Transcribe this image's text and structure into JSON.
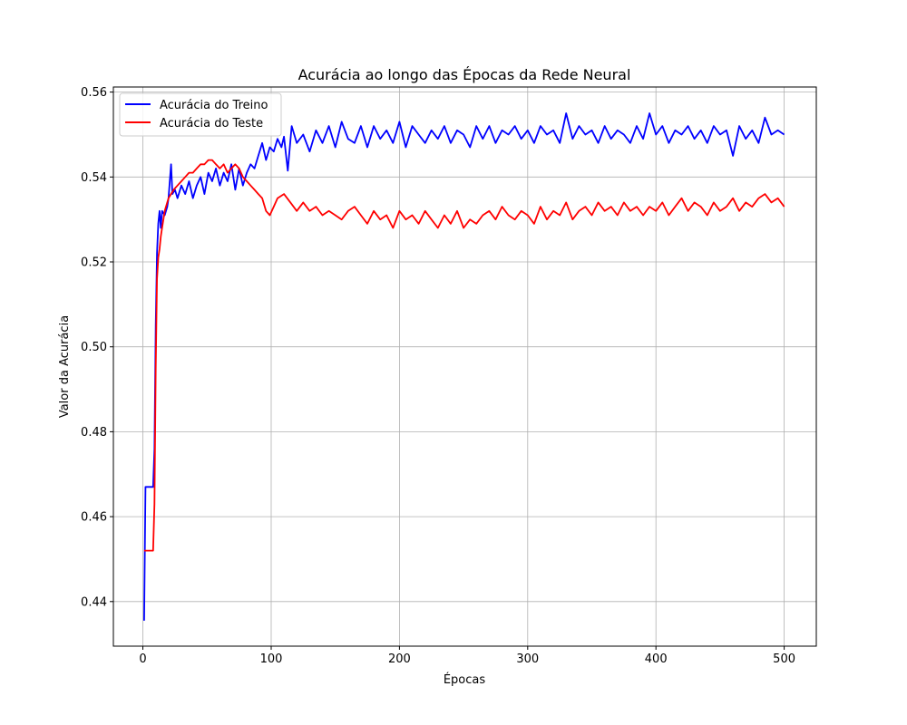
{
  "chart_data": {
    "type": "line",
    "title": "Acurácia ao longo das Épocas da Rede Neural",
    "xlabel": "Épocas",
    "ylabel": "Valor da Acurácia",
    "xlim": [
      -23,
      525
    ],
    "ylim": [
      0.4295,
      0.5612
    ],
    "xticks": [
      0,
      100,
      200,
      300,
      400,
      500
    ],
    "yticks": [
      0.44,
      0.46,
      0.48,
      0.5,
      0.52,
      0.54,
      0.56
    ],
    "ytick_labels": [
      "0.44",
      "0.46",
      "0.48",
      "0.50",
      "0.52",
      "0.54",
      "0.56"
    ],
    "grid": true,
    "legend_position": "upper-left",
    "series": [
      {
        "name": "Acurácia do Treino",
        "color": "#0000ff",
        "x": [
          1,
          2,
          3,
          8,
          9,
          10,
          11,
          12,
          13,
          14,
          15,
          17,
          19,
          20,
          22,
          23,
          25,
          27,
          30,
          33,
          36,
          39,
          42,
          45,
          48,
          51,
          54,
          57,
          60,
          63,
          66,
          69,
          72,
          75,
          78,
          81,
          84,
          87,
          90,
          93,
          96,
          99,
          102,
          105,
          108,
          110,
          113,
          116,
          120,
          125,
          130,
          135,
          140,
          145,
          150,
          155,
          160,
          165,
          170,
          175,
          180,
          185,
          190,
          195,
          200,
          205,
          210,
          215,
          220,
          225,
          230,
          235,
          240,
          245,
          250,
          255,
          260,
          265,
          270,
          275,
          280,
          285,
          290,
          295,
          300,
          305,
          310,
          315,
          320,
          325,
          330,
          335,
          340,
          345,
          350,
          355,
          360,
          365,
          370,
          375,
          380,
          385,
          390,
          395,
          400,
          405,
          410,
          415,
          420,
          425,
          430,
          435,
          440,
          445,
          450,
          455,
          460,
          465,
          470,
          475,
          480,
          485,
          490,
          495,
          500
        ],
        "y": [
          0.4355,
          0.467,
          0.467,
          0.467,
          0.476,
          0.505,
          0.522,
          0.529,
          0.532,
          0.528,
          0.532,
          0.531,
          0.533,
          0.535,
          0.543,
          0.536,
          0.537,
          0.535,
          0.538,
          0.536,
          0.539,
          0.535,
          0.538,
          0.54,
          0.536,
          0.541,
          0.539,
          0.542,
          0.538,
          0.541,
          0.539,
          0.543,
          0.537,
          0.542,
          0.538,
          0.541,
          0.543,
          0.542,
          0.545,
          0.548,
          0.544,
          0.547,
          0.546,
          0.549,
          0.547,
          0.5495,
          0.5415,
          0.552,
          0.548,
          0.55,
          0.546,
          0.551,
          0.548,
          0.552,
          0.547,
          0.553,
          0.549,
          0.548,
          0.552,
          0.547,
          0.552,
          0.549,
          0.551,
          0.548,
          0.553,
          0.547,
          0.552,
          0.55,
          0.548,
          0.551,
          0.549,
          0.552,
          0.548,
          0.551,
          0.55,
          0.547,
          0.552,
          0.549,
          0.552,
          0.548,
          0.551,
          0.55,
          0.552,
          0.549,
          0.551,
          0.548,
          0.552,
          0.55,
          0.551,
          0.548,
          0.555,
          0.549,
          0.552,
          0.55,
          0.551,
          0.548,
          0.552,
          0.549,
          0.551,
          0.55,
          0.548,
          0.552,
          0.549,
          0.555,
          0.55,
          0.552,
          0.548,
          0.551,
          0.55,
          0.552,
          0.549,
          0.551,
          0.548,
          0.552,
          0.55,
          0.551,
          0.545,
          0.552,
          0.549,
          0.551,
          0.548,
          0.554,
          0.55,
          0.551,
          0.55
        ]
      },
      {
        "name": "Acurácia do Teste",
        "color": "#ff0000",
        "x": [
          1,
          3,
          5,
          8,
          9,
          10,
          11,
          12,
          13,
          14,
          15,
          17,
          19,
          20,
          22,
          24,
          27,
          30,
          33,
          36,
          39,
          42,
          45,
          48,
          51,
          54,
          57,
          60,
          63,
          66,
          69,
          72,
          75,
          78,
          81,
          84,
          87,
          90,
          93,
          96,
          99,
          102,
          105,
          110,
          115,
          120,
          125,
          130,
          135,
          140,
          145,
          150,
          155,
          160,
          165,
          170,
          175,
          180,
          185,
          190,
          195,
          200,
          205,
          210,
          215,
          220,
          225,
          230,
          235,
          240,
          245,
          250,
          255,
          260,
          265,
          270,
          275,
          280,
          285,
          290,
          295,
          300,
          305,
          310,
          315,
          320,
          325,
          330,
          335,
          340,
          345,
          350,
          355,
          360,
          365,
          370,
          375,
          380,
          385,
          390,
          395,
          400,
          405,
          410,
          415,
          420,
          425,
          430,
          435,
          440,
          445,
          450,
          455,
          460,
          465,
          470,
          475,
          480,
          485,
          490,
          495,
          500
        ],
        "y": [
          0.452,
          0.452,
          0.452,
          0.452,
          0.463,
          0.495,
          0.516,
          0.521,
          0.523,
          0.526,
          0.528,
          0.532,
          0.534,
          0.535,
          0.536,
          0.537,
          0.538,
          0.539,
          0.54,
          0.541,
          0.541,
          0.542,
          0.543,
          0.543,
          0.544,
          0.544,
          0.543,
          0.542,
          0.543,
          0.541,
          0.542,
          0.543,
          0.542,
          0.54,
          0.539,
          0.538,
          0.537,
          0.536,
          0.535,
          0.532,
          0.531,
          0.533,
          0.535,
          0.536,
          0.534,
          0.532,
          0.534,
          0.532,
          0.533,
          0.531,
          0.532,
          0.531,
          0.53,
          0.532,
          0.533,
          0.531,
          0.529,
          0.532,
          0.53,
          0.531,
          0.528,
          0.532,
          0.53,
          0.531,
          0.529,
          0.532,
          0.53,
          0.528,
          0.531,
          0.529,
          0.532,
          0.528,
          0.53,
          0.529,
          0.531,
          0.532,
          0.53,
          0.533,
          0.531,
          0.53,
          0.532,
          0.531,
          0.529,
          0.533,
          0.53,
          0.532,
          0.531,
          0.534,
          0.53,
          0.532,
          0.533,
          0.531,
          0.534,
          0.532,
          0.533,
          0.531,
          0.534,
          0.532,
          0.533,
          0.531,
          0.533,
          0.532,
          0.534,
          0.531,
          0.533,
          0.535,
          0.532,
          0.534,
          0.533,
          0.531,
          0.534,
          0.532,
          0.533,
          0.535,
          0.532,
          0.534,
          0.533,
          0.535,
          0.536,
          0.534,
          0.535,
          0.533
        ]
      }
    ]
  }
}
